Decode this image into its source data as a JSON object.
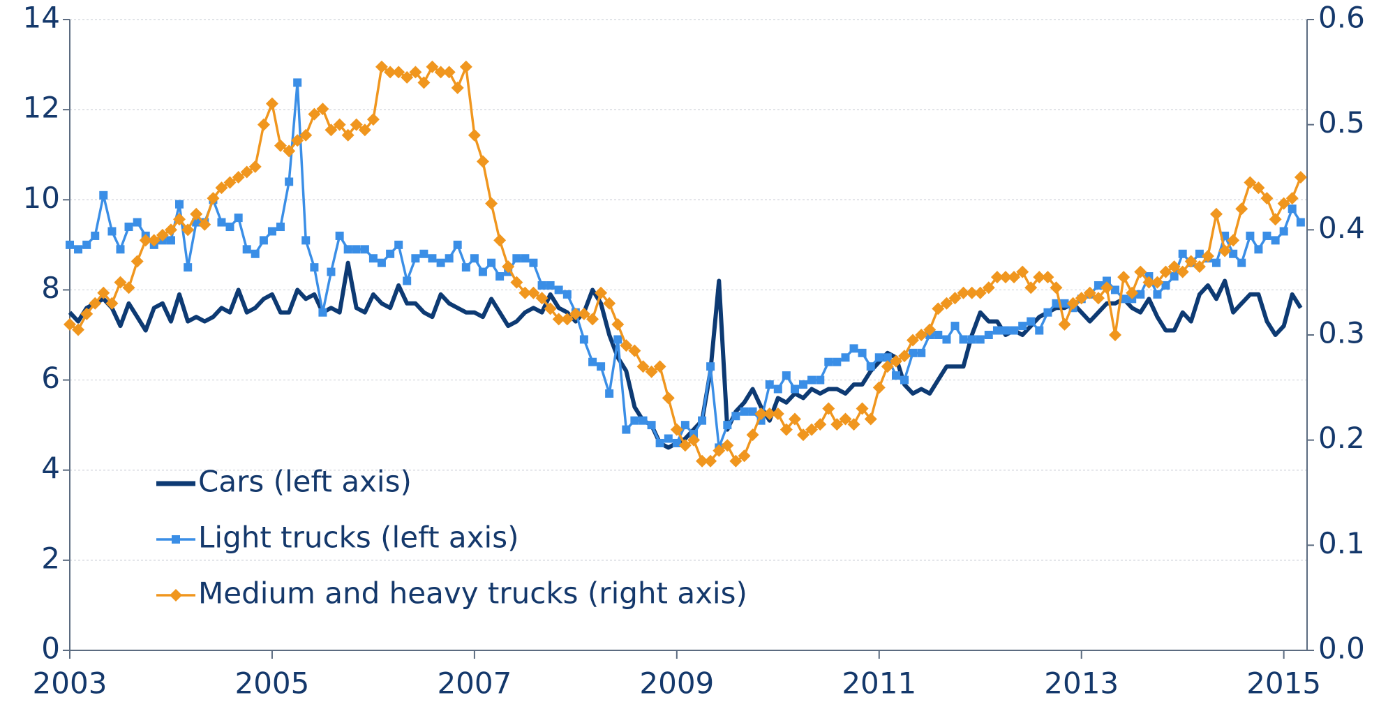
{
  "chart_data": {
    "type": "line",
    "x": [
      2003,
      2003.083,
      2003.167,
      2003.25,
      2003.333,
      2003.417,
      2003.5,
      2003.583,
      2003.667,
      2003.75,
      2003.833,
      2003.917,
      2004,
      2004.083,
      2004.167,
      2004.25,
      2004.333,
      2004.417,
      2004.5,
      2004.583,
      2004.667,
      2004.75,
      2004.833,
      2004.917,
      2005,
      2005.083,
      2005.167,
      2005.25,
      2005.333,
      2005.417,
      2005.5,
      2005.583,
      2005.667,
      2005.75,
      2005.833,
      2005.917,
      2006,
      2006.083,
      2006.167,
      2006.25,
      2006.333,
      2006.417,
      2006.5,
      2006.583,
      2006.667,
      2006.75,
      2006.833,
      2006.917,
      2007,
      2007.083,
      2007.167,
      2007.25,
      2007.333,
      2007.417,
      2007.5,
      2007.583,
      2007.667,
      2007.75,
      2007.833,
      2007.917,
      2008,
      2008.083,
      2008.167,
      2008.25,
      2008.333,
      2008.417,
      2008.5,
      2008.583,
      2008.667,
      2008.75,
      2008.833,
      2008.917,
      2009,
      2009.083,
      2009.167,
      2009.25,
      2009.333,
      2009.417,
      2009.5,
      2009.583,
      2009.667,
      2009.75,
      2009.833,
      2009.917,
      2010,
      2010.083,
      2010.167,
      2010.25,
      2010.333,
      2010.417,
      2010.5,
      2010.583,
      2010.667,
      2010.75,
      2010.833,
      2010.917,
      2011,
      2011.083,
      2011.167,
      2011.25,
      2011.333,
      2011.417,
      2011.5,
      2011.583,
      2011.667,
      2011.75,
      2011.833,
      2011.917,
      2012,
      2012.083,
      2012.167,
      2012.25,
      2012.333,
      2012.417,
      2012.5,
      2012.583,
      2012.667,
      2012.75,
      2012.833,
      2012.917,
      2013,
      2013.083,
      2013.167,
      2013.25,
      2013.333,
      2013.417,
      2013.5,
      2013.583,
      2013.667,
      2013.75,
      2013.833,
      2013.917,
      2014,
      2014.083,
      2014.167,
      2014.25,
      2014.333,
      2014.417,
      2014.5,
      2014.583,
      2014.667,
      2014.75,
      2014.833,
      2014.917,
      2015,
      2015.083,
      2015.167
    ],
    "series": [
      {
        "name": "Cars (left axis)",
        "color": "#0d3a73",
        "marker": "none",
        "axis": "y",
        "values": [
          7.5,
          7.3,
          7.6,
          7.7,
          7.8,
          7.6,
          7.2,
          7.7,
          7.4,
          7.1,
          7.6,
          7.7,
          7.3,
          7.9,
          7.3,
          7.4,
          7.3,
          7.4,
          7.6,
          7.5,
          8.0,
          7.5,
          7.6,
          7.8,
          7.9,
          7.5,
          7.5,
          8.0,
          7.8,
          7.9,
          7.5,
          7.6,
          7.5,
          8.6,
          7.6,
          7.5,
          7.9,
          7.7,
          7.6,
          8.1,
          7.7,
          7.7,
          7.5,
          7.4,
          7.9,
          7.7,
          7.6,
          7.5,
          7.5,
          7.4,
          7.8,
          7.5,
          7.2,
          7.3,
          7.5,
          7.6,
          7.5,
          7.9,
          7.6,
          7.5,
          7.3,
          7.5,
          8.0,
          7.7,
          7.0,
          6.5,
          6.2,
          5.4,
          5.1,
          5.0,
          4.6,
          4.5,
          4.6,
          4.7,
          4.9,
          5.1,
          6.2,
          8.2,
          4.9,
          5.3,
          5.5,
          5.8,
          5.4,
          5.1,
          5.6,
          5.5,
          5.7,
          5.6,
          5.8,
          5.7,
          5.8,
          5.8,
          5.7,
          5.9,
          5.9,
          6.2,
          6.4,
          6.6,
          6.5,
          5.9,
          5.7,
          5.8,
          5.7,
          6.0,
          6.3,
          6.3,
          6.3,
          7.0,
          7.5,
          7.3,
          7.3,
          7.0,
          7.1,
          7.0,
          7.2,
          7.4,
          7.5,
          7.6,
          7.6,
          7.7,
          7.5,
          7.3,
          7.5,
          7.7,
          7.7,
          7.8,
          7.6,
          7.5,
          7.8,
          7.4,
          7.1,
          7.1,
          7.5,
          7.3,
          7.9,
          8.1,
          7.8,
          8.2,
          7.5,
          7.7,
          7.9,
          7.9,
          7.3,
          7.0,
          7.2,
          7.9,
          7.6
        ]
      },
      {
        "name": "Light trucks (left axis)",
        "color": "#3a8ee6",
        "marker": "square",
        "axis": "y",
        "values": [
          9.0,
          8.9,
          9.0,
          9.2,
          10.1,
          9.3,
          8.9,
          9.4,
          9.5,
          9.2,
          9.0,
          9.1,
          9.1,
          9.9,
          8.5,
          9.5,
          9.5,
          10.0,
          9.5,
          9.4,
          9.6,
          8.9,
          8.8,
          9.1,
          9.3,
          9.4,
          10.4,
          12.6,
          9.1,
          8.5,
          7.5,
          8.4,
          9.2,
          8.9,
          8.9,
          8.9,
          8.7,
          8.6,
          8.8,
          9.0,
          8.2,
          8.7,
          8.8,
          8.7,
          8.6,
          8.7,
          9.0,
          8.5,
          8.7,
          8.4,
          8.6,
          8.3,
          8.4,
          8.7,
          8.7,
          8.6,
          8.1,
          8.1,
          8.0,
          7.9,
          7.5,
          6.9,
          6.4,
          6.3,
          5.7,
          6.9,
          4.9,
          5.1,
          5.1,
          5.0,
          4.6,
          4.7,
          4.6,
          5.0,
          4.8,
          5.1,
          6.3,
          4.5,
          5.0,
          5.2,
          5.3,
          5.3,
          5.1,
          5.9,
          5.8,
          6.1,
          5.8,
          5.9,
          6.0,
          6.0,
          6.4,
          6.4,
          6.5,
          6.7,
          6.6,
          6.3,
          6.5,
          6.5,
          6.1,
          6.0,
          6.6,
          6.6,
          7.0,
          7.0,
          6.9,
          7.2,
          6.9,
          6.9,
          6.9,
          7.0,
          7.1,
          7.1,
          7.1,
          7.2,
          7.3,
          7.1,
          7.5,
          7.7,
          7.7,
          7.6,
          7.8,
          7.9,
          8.1,
          8.2,
          8.0,
          7.8,
          7.8,
          7.9,
          8.3,
          7.9,
          8.1,
          8.3,
          8.8,
          8.6,
          8.8,
          8.7,
          8.6,
          9.2,
          8.8,
          8.6,
          9.2,
          8.9,
          9.2,
          9.1,
          9.3,
          9.8,
          9.5
        ]
      },
      {
        "name": "Medium and heavy trucks (right axis)",
        "color": "#f0961e",
        "marker": "diamond",
        "axis": "y2",
        "values": [
          0.31,
          0.305,
          0.32,
          0.33,
          0.34,
          0.33,
          0.35,
          0.345,
          0.37,
          0.39,
          0.39,
          0.395,
          0.4,
          0.41,
          0.4,
          0.415,
          0.405,
          0.43,
          0.44,
          0.445,
          0.45,
          0.455,
          0.46,
          0.5,
          0.52,
          0.48,
          0.475,
          0.485,
          0.49,
          0.51,
          0.515,
          0.495,
          0.5,
          0.49,
          0.5,
          0.495,
          0.505,
          0.555,
          0.55,
          0.55,
          0.545,
          0.55,
          0.54,
          0.555,
          0.55,
          0.55,
          0.535,
          0.555,
          0.49,
          0.465,
          0.425,
          0.39,
          0.365,
          0.35,
          0.34,
          0.34,
          0.335,
          0.325,
          0.315,
          0.315,
          0.32,
          0.32,
          0.315,
          0.34,
          0.33,
          0.31,
          0.29,
          0.285,
          0.27,
          0.265,
          0.27,
          0.24,
          0.21,
          0.195,
          0.2,
          0.18,
          0.18,
          0.19,
          0.195,
          0.18,
          0.185,
          0.205,
          0.225,
          0.225,
          0.225,
          0.21,
          0.22,
          0.205,
          0.21,
          0.215,
          0.23,
          0.215,
          0.22,
          0.215,
          0.23,
          0.22,
          0.25,
          0.27,
          0.275,
          0.28,
          0.295,
          0.3,
          0.305,
          0.325,
          0.33,
          0.335,
          0.34,
          0.34,
          0.34,
          0.345,
          0.355,
          0.355,
          0.355,
          0.36,
          0.345,
          0.355,
          0.355,
          0.345,
          0.31,
          0.33,
          0.335,
          0.34,
          0.335,
          0.345,
          0.3,
          0.355,
          0.34,
          0.36,
          0.35,
          0.35,
          0.36,
          0.365,
          0.36,
          0.37,
          0.365,
          0.375,
          0.415,
          0.38,
          0.39,
          0.42,
          0.445,
          0.44,
          0.43,
          0.41,
          0.425,
          0.43,
          0.45
        ]
      }
    ],
    "xlim": [
      2003,
      2015.23
    ],
    "xticks": [
      2003,
      2005,
      2007,
      2009,
      2011,
      2013,
      2015
    ],
    "ylim": [
      0,
      14
    ],
    "yticks": [
      0,
      2,
      4,
      6,
      8,
      10,
      12,
      14
    ],
    "y2lim": [
      0,
      0.6
    ],
    "y2ticks": [
      {
        "value": 0,
        "label": "0.0"
      },
      0.1,
      0.2,
      0.3,
      0.4,
      0.5,
      0.6
    ],
    "grid": true,
    "legend": "lower left"
  }
}
